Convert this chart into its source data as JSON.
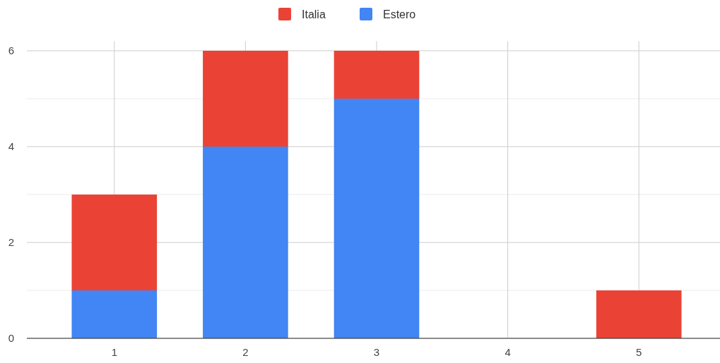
{
  "chart_data": {
    "type": "bar",
    "stacked": true,
    "categories": [
      "1",
      "2",
      "3",
      "4",
      "5"
    ],
    "series": [
      {
        "name": "Estero",
        "color": "#4285f4",
        "values": [
          1,
          4,
          5,
          0,
          0
        ]
      },
      {
        "name": "Italia",
        "color": "#ea4335",
        "values": [
          2,
          2,
          1,
          0,
          1
        ]
      }
    ],
    "ylim": [
      0,
      6.2
    ],
    "yticks": [
      0,
      {
        "value": 1,
        "label": null
      },
      2,
      {
        "value": 3,
        "label": null
      },
      4,
      {
        "value": 5,
        "label": null
      },
      6
    ],
    "grid": true,
    "legend": "top"
  }
}
